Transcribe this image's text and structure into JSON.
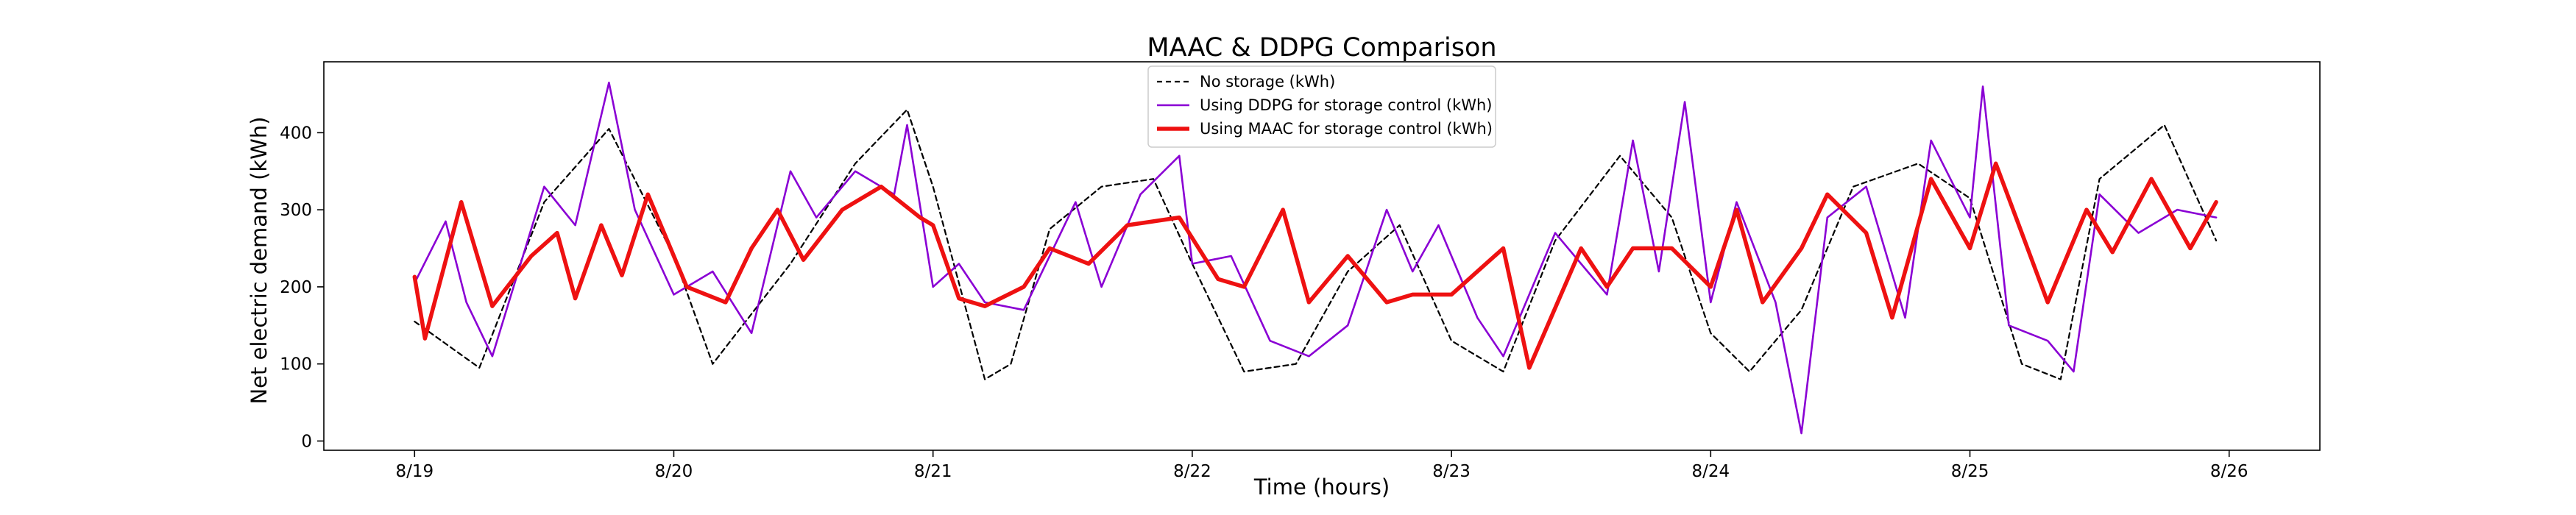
{
  "chart_data": {
    "type": "line",
    "title": "MAAC & DDPG Comparison",
    "xlabel": "Time (hours)",
    "ylabel": "Net electric demand (kWh)",
    "xlim": [
      -0.35,
      7.35
    ],
    "ylim": [
      -12,
      492
    ],
    "grid": false,
    "legend_position": "top-center",
    "x_ticks": [
      {
        "value": 0,
        "label": "8/19"
      },
      {
        "value": 1,
        "label": "8/20"
      },
      {
        "value": 2,
        "label": "8/21"
      },
      {
        "value": 3,
        "label": "8/22"
      },
      {
        "value": 4,
        "label": "8/23"
      },
      {
        "value": 5,
        "label": "8/24"
      },
      {
        "value": 6,
        "label": "8/25"
      },
      {
        "value": 7,
        "label": "8/26"
      }
    ],
    "y_ticks": [
      0,
      100,
      200,
      300,
      400
    ],
    "series": [
      {
        "name": "No storage (kWh)",
        "color": "#000000",
        "style": "dashed",
        "points": [
          [
            0,
            155
          ],
          [
            0.25,
            95
          ],
          [
            0.5,
            310
          ],
          [
            0.75,
            405
          ],
          [
            1,
            240
          ],
          [
            1.15,
            100
          ],
          [
            1.45,
            230
          ],
          [
            1.7,
            360
          ],
          [
            1.9,
            430
          ],
          [
            2,
            330
          ],
          [
            2.2,
            80
          ],
          [
            2.3,
            100
          ],
          [
            2.45,
            275
          ],
          [
            2.65,
            330
          ],
          [
            2.85,
            340
          ],
          [
            3,
            230
          ],
          [
            3.2,
            90
          ],
          [
            3.4,
            100
          ],
          [
            3.6,
            220
          ],
          [
            3.8,
            280
          ],
          [
            4,
            130
          ],
          [
            4.2,
            90
          ],
          [
            4.4,
            260
          ],
          [
            4.65,
            370
          ],
          [
            4.85,
            290
          ],
          [
            5,
            140
          ],
          [
            5.15,
            90
          ],
          [
            5.35,
            170
          ],
          [
            5.55,
            330
          ],
          [
            5.8,
            360
          ],
          [
            6,
            315
          ],
          [
            6.2,
            100
          ],
          [
            6.35,
            80
          ],
          [
            6.5,
            340
          ],
          [
            6.75,
            410
          ],
          [
            6.95,
            260
          ]
        ]
      },
      {
        "name": "Using DDPG for storage control (kWh)",
        "color": "#8a00d4",
        "style": "solid",
        "points": [
          [
            0,
            205
          ],
          [
            0.12,
            285
          ],
          [
            0.2,
            180
          ],
          [
            0.3,
            110
          ],
          [
            0.5,
            330
          ],
          [
            0.62,
            280
          ],
          [
            0.75,
            465
          ],
          [
            0.85,
            300
          ],
          [
            1,
            190
          ],
          [
            1.15,
            220
          ],
          [
            1.3,
            140
          ],
          [
            1.45,
            350
          ],
          [
            1.55,
            290
          ],
          [
            1.7,
            350
          ],
          [
            1.85,
            320
          ],
          [
            1.9,
            410
          ],
          [
            2,
            200
          ],
          [
            2.1,
            230
          ],
          [
            2.2,
            180
          ],
          [
            2.35,
            170
          ],
          [
            2.45,
            240
          ],
          [
            2.55,
            310
          ],
          [
            2.65,
            200
          ],
          [
            2.8,
            320
          ],
          [
            2.95,
            370
          ],
          [
            3,
            230
          ],
          [
            3.15,
            240
          ],
          [
            3.3,
            130
          ],
          [
            3.45,
            110
          ],
          [
            3.6,
            150
          ],
          [
            3.75,
            300
          ],
          [
            3.85,
            220
          ],
          [
            3.95,
            280
          ],
          [
            4.1,
            160
          ],
          [
            4.2,
            110
          ],
          [
            4.4,
            270
          ],
          [
            4.6,
            190
          ],
          [
            4.7,
            390
          ],
          [
            4.8,
            220
          ],
          [
            4.9,
            440
          ],
          [
            5,
            180
          ],
          [
            5.1,
            310
          ],
          [
            5.25,
            180
          ],
          [
            5.35,
            10
          ],
          [
            5.45,
            290
          ],
          [
            5.6,
            330
          ],
          [
            5.75,
            160
          ],
          [
            5.85,
            390
          ],
          [
            6,
            290
          ],
          [
            6.05,
            460
          ],
          [
            6.15,
            150
          ],
          [
            6.3,
            130
          ],
          [
            6.4,
            90
          ],
          [
            6.5,
            320
          ],
          [
            6.65,
            270
          ],
          [
            6.8,
            300
          ],
          [
            6.95,
            290
          ]
        ]
      },
      {
        "name": "Using MAAC for storage control (kWh)",
        "color": "#ee1111",
        "style": "bold",
        "points": [
          [
            0,
            213
          ],
          [
            0.04,
            133
          ],
          [
            0.18,
            310
          ],
          [
            0.3,
            175
          ],
          [
            0.45,
            240
          ],
          [
            0.55,
            270
          ],
          [
            0.62,
            185
          ],
          [
            0.72,
            280
          ],
          [
            0.8,
            215
          ],
          [
            0.9,
            320
          ],
          [
            1.05,
            200
          ],
          [
            1.2,
            180
          ],
          [
            1.3,
            250
          ],
          [
            1.4,
            300
          ],
          [
            1.5,
            235
          ],
          [
            1.65,
            300
          ],
          [
            1.8,
            330
          ],
          [
            1.95,
            290
          ],
          [
            2,
            280
          ],
          [
            2.1,
            185
          ],
          [
            2.2,
            175
          ],
          [
            2.35,
            200
          ],
          [
            2.45,
            250
          ],
          [
            2.6,
            230
          ],
          [
            2.75,
            280
          ],
          [
            2.95,
            290
          ],
          [
            3.1,
            210
          ],
          [
            3.2,
            200
          ],
          [
            3.35,
            300
          ],
          [
            3.45,
            180
          ],
          [
            3.6,
            240
          ],
          [
            3.75,
            180
          ],
          [
            3.85,
            190
          ],
          [
            4,
            190
          ],
          [
            4.2,
            250
          ],
          [
            4.3,
            95
          ],
          [
            4.5,
            250
          ],
          [
            4.6,
            200
          ],
          [
            4.7,
            250
          ],
          [
            4.85,
            250
          ],
          [
            5,
            200
          ],
          [
            5.1,
            300
          ],
          [
            5.2,
            180
          ],
          [
            5.35,
            250
          ],
          [
            5.45,
            320
          ],
          [
            5.6,
            270
          ],
          [
            5.7,
            160
          ],
          [
            5.85,
            340
          ],
          [
            6,
            250
          ],
          [
            6.1,
            360
          ],
          [
            6.2,
            270
          ],
          [
            6.3,
            180
          ],
          [
            6.45,
            300
          ],
          [
            6.55,
            245
          ],
          [
            6.7,
            340
          ],
          [
            6.85,
            250
          ],
          [
            6.95,
            310
          ]
        ]
      }
    ]
  }
}
